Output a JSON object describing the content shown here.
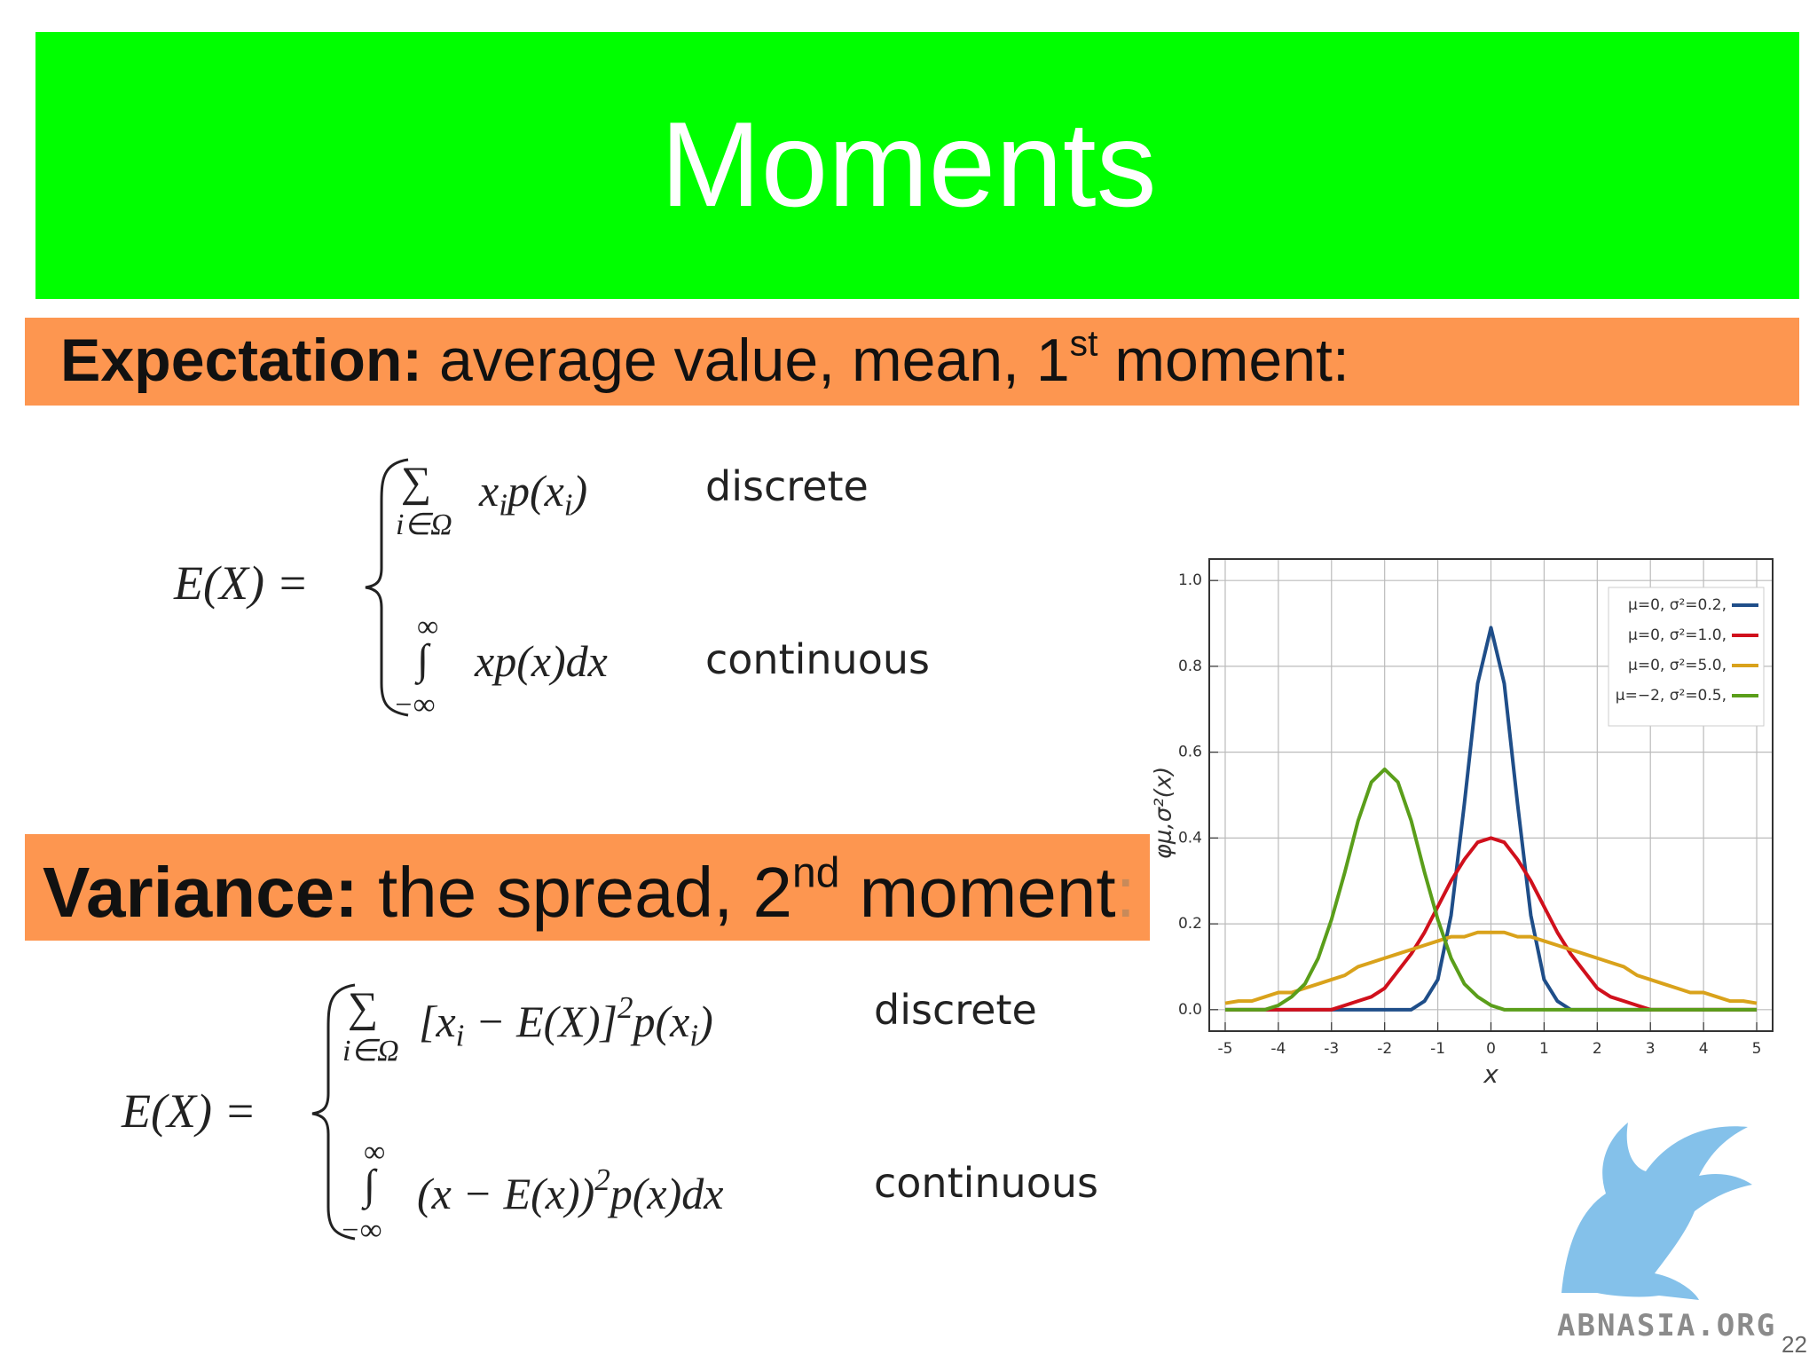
{
  "header": {
    "title": "Moments"
  },
  "sections": [
    {
      "label": "Expectation:",
      "text": "average value, mean, 1",
      "sup": "st",
      "text_after": "moment:"
    },
    {
      "label": "Variance:",
      "text": "the spread, 2",
      "sup": "nd",
      "text_after": "moment",
      "tail": ":"
    }
  ],
  "formulas": [
    {
      "lhs": "E(X) =",
      "cases": [
        {
          "op": "∑",
          "under": "i∈Ω",
          "expr": [
            {
              "text": "x"
            },
            {
              "sub": "i"
            },
            {
              "text": "p(x"
            },
            {
              "sub": "i"
            },
            {
              "text": ")"
            }
          ],
          "label": "discrete"
        },
        {
          "op": "∫",
          "over": "∞",
          "under": "−∞",
          "expr": [
            {
              "text": "xp(x)dx"
            }
          ],
          "label": "continuous"
        }
      ]
    },
    {
      "lhs": "E(X) =",
      "cases": [
        {
          "op": "∑",
          "under": "i∈Ω",
          "expr": [
            {
              "text": "[x"
            },
            {
              "sub": "i"
            },
            {
              "text": " − E(X)]"
            },
            {
              "sup": "2"
            },
            {
              "text": "p(x"
            },
            {
              "sub": "i"
            },
            {
              "text": ")"
            }
          ],
          "label": "discrete"
        },
        {
          "op": "∫",
          "over": "∞",
          "under": "−∞",
          "expr": [
            {
              "text": "(x − E(x))"
            },
            {
              "sup": "2"
            },
            {
              "text": "p(x)dx"
            }
          ],
          "label": "continuous"
        }
      ]
    }
  ],
  "chart_data": {
    "type": "line",
    "x_label": "x",
    "y_label": "φμ,σ²(x)",
    "x": [
      -5,
      -4.75,
      -4.5,
      -4.25,
      -4,
      -3.75,
      -3.5,
      -3.25,
      -3,
      -2.75,
      -2.5,
      -2.25,
      -2,
      -1.75,
      -1.5,
      -1.25,
      -1,
      -0.75,
      -0.5,
      -0.25,
      0,
      0.25,
      0.5,
      0.75,
      1,
      1.25,
      1.5,
      1.75,
      2,
      2.25,
      2.5,
      2.75,
      3,
      3.25,
      3.5,
      3.75,
      4,
      4.25,
      4.5,
      4.75,
      5
    ],
    "series": [
      {
        "name": "μ=0,  σ²=0.2,",
        "color": "#1f4e89",
        "values": [
          0,
          0,
          0,
          0,
          0,
          0,
          0,
          0,
          0,
          0,
          0,
          0,
          0,
          0,
          0,
          0.02,
          0.07,
          0.22,
          0.48,
          0.76,
          0.89,
          0.76,
          0.48,
          0.22,
          0.07,
          0.02,
          0,
          0,
          0,
          0,
          0,
          0,
          0,
          0,
          0,
          0,
          0,
          0,
          0,
          0,
          0
        ]
      },
      {
        "name": "μ=0,  σ²=1.0,",
        "color": "#d0101c",
        "values": [
          0,
          0,
          0,
          0,
          0,
          0,
          0,
          0,
          0,
          0.01,
          0.02,
          0.03,
          0.05,
          0.09,
          0.13,
          0.18,
          0.24,
          0.3,
          0.35,
          0.39,
          0.4,
          0.39,
          0.35,
          0.3,
          0.24,
          0.18,
          0.13,
          0.09,
          0.05,
          0.03,
          0.02,
          0.01,
          0,
          0,
          0,
          0,
          0,
          0,
          0,
          0,
          0
        ]
      },
      {
        "name": "μ=0,  σ²=5.0,",
        "color": "#d9a21b",
        "values": [
          0.015,
          0.02,
          0.02,
          0.03,
          0.04,
          0.04,
          0.05,
          0.06,
          0.07,
          0.08,
          0.1,
          0.11,
          0.12,
          0.13,
          0.14,
          0.15,
          0.16,
          0.17,
          0.17,
          0.18,
          0.18,
          0.18,
          0.17,
          0.17,
          0.16,
          0.15,
          0.14,
          0.13,
          0.12,
          0.11,
          0.1,
          0.08,
          0.07,
          0.06,
          0.05,
          0.04,
          0.04,
          0.03,
          0.02,
          0.02,
          0.015
        ]
      },
      {
        "name": "μ=−2, σ²=0.5,",
        "color": "#5a9e1a",
        "values": [
          0,
          0,
          0,
          0,
          0.01,
          0.03,
          0.06,
          0.12,
          0.21,
          0.32,
          0.44,
          0.53,
          0.56,
          0.53,
          0.44,
          0.32,
          0.21,
          0.12,
          0.06,
          0.03,
          0.01,
          0,
          0,
          0,
          0,
          0,
          0,
          0,
          0,
          0,
          0,
          0,
          0,
          0,
          0,
          0,
          0,
          0,
          0,
          0,
          0
        ]
      }
    ],
    "xlim": [
      -5.3,
      5.3
    ],
    "ylim": [
      -0.05,
      1.05
    ],
    "xticks": [
      -5,
      -4,
      -3,
      -2,
      -1,
      0,
      1,
      2,
      3,
      4,
      5
    ],
    "yticks": [
      {
        "value": 0,
        "label": "0.0"
      },
      {
        "value": 0.2,
        "label": "0.2"
      },
      {
        "value": 0.4,
        "label": "0.4"
      },
      {
        "value": 0.6,
        "label": "0.6"
      },
      {
        "value": 0.8,
        "label": "0.8"
      },
      {
        "value": 1,
        "label": "1.0"
      }
    ],
    "grid": true,
    "legend": "top-right"
  },
  "footer": {
    "logo_text": "ABNASIA.ORG",
    "page_number": "22"
  }
}
